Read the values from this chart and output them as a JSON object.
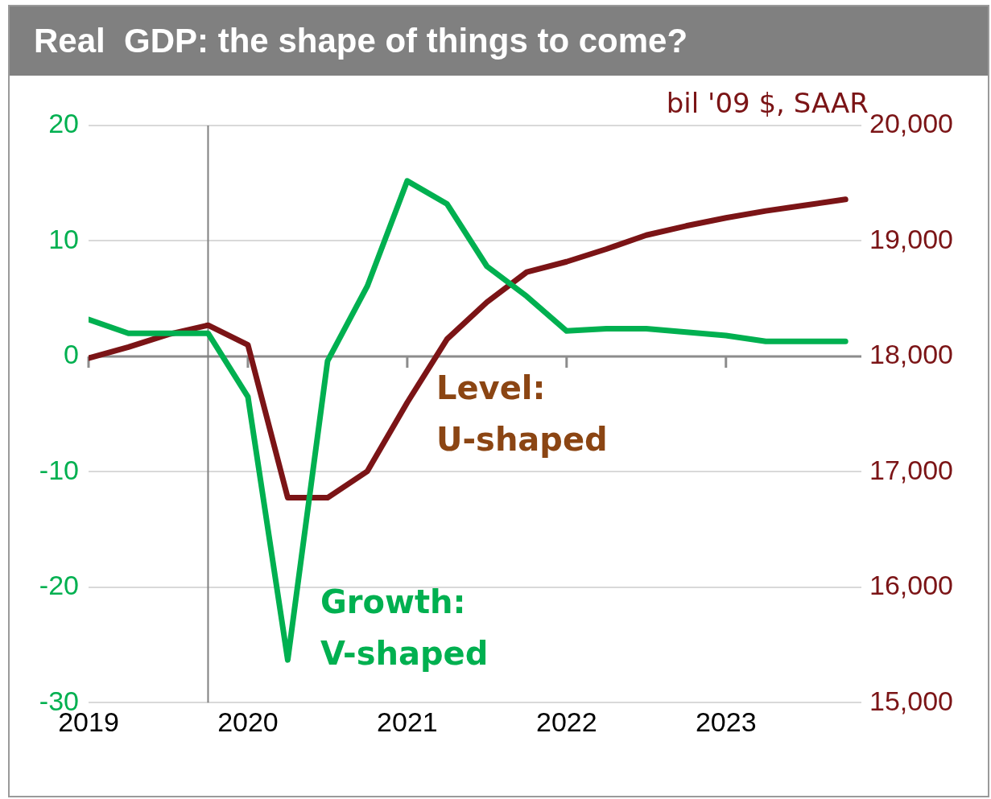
{
  "chart_data": {
    "type": "line",
    "title": "Real  GDP: the shape of things to come?",
    "y2label": "bil '09 $, SAAR",
    "x": [
      2019,
      2019.25,
      2019.5,
      2019.75,
      2020,
      2020.25,
      2020.5,
      2020.75,
      2021,
      2021.25,
      2021.5,
      2021.75,
      2022,
      2022.25,
      2022.5,
      2022.75,
      2023,
      2023.25,
      2023.5,
      2023.75
    ],
    "series": [
      {
        "color": "#00b050",
        "values": [
          3.2,
          2.0,
          2.0,
          2.0,
          -3.5,
          -26.3,
          -0.4,
          6.1,
          15.2,
          13.2,
          7.8,
          5.2,
          2.2,
          2.4,
          2.4,
          2.1,
          1.8,
          1.3,
          1.3,
          1.3
        ]
      },
      {
        "color": "#7b1416",
        "axis": "y2",
        "values": [
          17985,
          18080,
          18190,
          18270,
          18100,
          16775,
          16775,
          17005,
          17600,
          18150,
          18470,
          18730,
          18820,
          18930,
          19050,
          19130,
          19200,
          19260,
          19310,
          19360
        ]
      }
    ],
    "xlim": [
      2019,
      2023.85
    ],
    "xticks": [
      2019,
      2020,
      2021,
      2022,
      2023
    ],
    "ylim": [
      -30,
      20
    ],
    "yticks": [
      -30,
      -20,
      -10,
      0,
      10,
      20
    ],
    "y2lim": [
      15000,
      20000
    ],
    "y2ticks": [
      {
        "value": 15000,
        "label": "15,000"
      },
      {
        "value": 16000,
        "label": "16,000"
      },
      {
        "value": 17000,
        "label": "17,000"
      },
      {
        "value": 18000,
        "label": "18,000"
      },
      {
        "value": 19000,
        "label": "19,000"
      },
      {
        "value": 20000,
        "label": "20,000"
      }
    ],
    "ref_lines": [
      {
        "axis": "x",
        "value": 2019.75,
        "color": "#808080"
      }
    ],
    "annotations": [
      "Growth:\nV-shaped",
      "Level:\nU-shaped"
    ],
    "grid": "y",
    "legend": false,
    "marker": "none",
    "line_style": "solid"
  }
}
